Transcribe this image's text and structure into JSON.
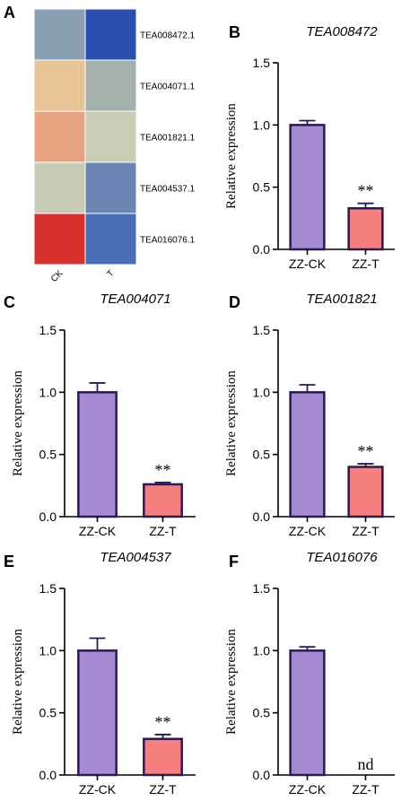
{
  "panel_letters": [
    "A",
    "B",
    "C",
    "D",
    "E",
    "F"
  ],
  "heatmap": {
    "row_labels": [
      "TEA008472.1",
      "TEA004071.1",
      "TEA001821.1",
      "TEA004537.1",
      "TEA016076.1"
    ],
    "col_labels": [
      "CK",
      "T"
    ],
    "cell_colors": [
      [
        "#8a9fb1",
        "#2b4fb0"
      ],
      [
        "#e8c395",
        "#a3b0ae"
      ],
      [
        "#e6a580",
        "#c8cdb5"
      ],
      [
        "#c7ccb6",
        "#6b84b3"
      ],
      [
        "#d6312d",
        "#4a6db5"
      ]
    ]
  },
  "colors": {
    "ck_fill": "#a68ad4",
    "t_fill": "#f57f7f",
    "bar_stroke": "#2a1a4f"
  },
  "chart_data": [
    {
      "panel": "B",
      "type": "bar",
      "title": "TEA008472",
      "ylabel": "Relative expression",
      "ylim": [
        0,
        1.5
      ],
      "yticks": [
        "0.0",
        "0.5",
        "1.0",
        "1.5"
      ],
      "categories": [
        "ZZ-CK",
        "ZZ-T"
      ],
      "values": [
        1.0,
        0.33
      ],
      "errors": [
        0.035,
        0.04
      ],
      "annotations": [
        "",
        "**"
      ]
    },
    {
      "panel": "C",
      "type": "bar",
      "title": "TEA004071",
      "ylabel": "Relative expression",
      "ylim": [
        0,
        1.5
      ],
      "yticks": [
        "0.0",
        "0.5",
        "1.0",
        "1.5"
      ],
      "categories": [
        "ZZ-CK",
        "ZZ-T"
      ],
      "values": [
        1.0,
        0.26
      ],
      "errors": [
        0.075,
        0.015
      ],
      "annotations": [
        "",
        "**"
      ]
    },
    {
      "panel": "D",
      "type": "bar",
      "title": "TEA001821",
      "ylabel": "Relative expression",
      "ylim": [
        0,
        1.5
      ],
      "yticks": [
        "0.0",
        "0.5",
        "1.0",
        "1.5"
      ],
      "categories": [
        "ZZ-CK",
        "ZZ-T"
      ],
      "values": [
        1.0,
        0.4
      ],
      "errors": [
        0.06,
        0.025
      ],
      "annotations": [
        "",
        "**"
      ]
    },
    {
      "panel": "E",
      "type": "bar",
      "title": "TEA004537",
      "ylabel": "Relative expression",
      "ylim": [
        0,
        1.5
      ],
      "yticks": [
        "0.0",
        "0.5",
        "1.0",
        "1.5"
      ],
      "categories": [
        "ZZ-CK",
        "ZZ-T"
      ],
      "values": [
        1.0,
        0.29
      ],
      "errors": [
        0.1,
        0.035
      ],
      "annotations": [
        "",
        "**"
      ]
    },
    {
      "panel": "F",
      "type": "bar",
      "title": "TEA016076",
      "ylabel": "Relative expression",
      "ylim": [
        0,
        1.5
      ],
      "yticks": [
        "0.0",
        "0.5",
        "1.0",
        "1.5"
      ],
      "categories": [
        "ZZ-CK",
        "ZZ-T"
      ],
      "values": [
        1.0,
        0
      ],
      "errors": [
        0.03,
        0
      ],
      "annotations": [
        "",
        "nd"
      ]
    }
  ]
}
